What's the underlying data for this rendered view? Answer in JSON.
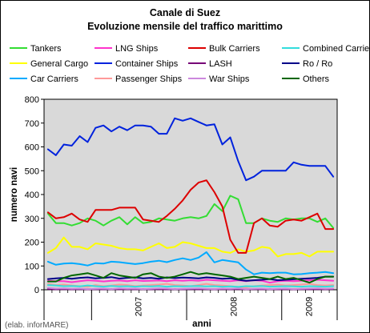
{
  "chart_data": {
    "type": "line",
    "title": "Canale di Suez",
    "subtitle": "Evoluzione mensile del traffico marittimo",
    "xlabel": "anni",
    "ylabel": "numero navi",
    "ylim": [
      0,
      800
    ],
    "yticks": [
      0,
      100,
      200,
      300,
      400,
      500,
      600,
      700,
      800
    ],
    "x_year_labels": [
      {
        "label": "2007",
        "index": 6
      },
      {
        "label": "2008",
        "index": 18
      },
      {
        "label": "2009",
        "index": 30
      }
    ],
    "x": [
      "2006-07",
      "2006-08",
      "2006-09",
      "2006-10",
      "2006-11",
      "2006-12",
      "2007-01",
      "2007-02",
      "2007-03",
      "2007-04",
      "2007-05",
      "2007-06",
      "2007-07",
      "2007-08",
      "2007-09",
      "2007-10",
      "2007-11",
      "2007-12",
      "2008-01",
      "2008-02",
      "2008-03",
      "2008-04",
      "2008-05",
      "2008-06",
      "2008-07",
      "2008-08",
      "2008-09",
      "2008-10",
      "2008-11",
      "2008-12",
      "2009-01",
      "2009-02",
      "2009-03",
      "2009-04",
      "2009-05",
      "2009-06",
      "2009-07"
    ],
    "grid": false,
    "legend_position": "top",
    "series": [
      {
        "name": "Tankers",
        "color": "#33dd33",
        "values": [
          320,
          280,
          280,
          270,
          280,
          300,
          290,
          270,
          290,
          305,
          275,
          305,
          280,
          285,
          300,
          295,
          290,
          300,
          305,
          300,
          310,
          360,
          330,
          395,
          380,
          280,
          280,
          300,
          290,
          285,
          300,
          295,
          300,
          300,
          285,
          300,
          260
        ]
      },
      {
        "name": "LNG Ships",
        "color": "#ff33cc",
        "values": [
          38,
          36,
          36,
          32,
          36,
          40,
          38,
          35,
          38,
          39,
          36,
          40,
          37,
          38,
          39,
          36,
          40,
          38,
          40,
          38,
          42,
          40,
          38,
          36,
          40,
          36,
          40,
          38,
          30,
          36,
          38,
          36,
          38,
          40,
          42,
          40,
          38
        ]
      },
      {
        "name": "Bulk Carriers",
        "color": "#dd0000",
        "values": [
          325,
          300,
          305,
          320,
          295,
          285,
          335,
          335,
          335,
          345,
          345,
          345,
          295,
          290,
          285,
          310,
          340,
          375,
          420,
          450,
          460,
          410,
          350,
          210,
          155,
          155,
          280,
          300,
          270,
          265,
          290,
          295,
          290,
          305,
          320,
          255,
          255
        ]
      },
      {
        "name": "Combined Carriers",
        "color": "#33dddd",
        "values": [
          20,
          18,
          15,
          16,
          14,
          18,
          15,
          13,
          16,
          14,
          15,
          13,
          15,
          14,
          16,
          13,
          15,
          14,
          15,
          16,
          14,
          15,
          13,
          14,
          12,
          15,
          14,
          16,
          13,
          14,
          15,
          14,
          13,
          15,
          14,
          13,
          15
        ]
      },
      {
        "name": "General Cargo",
        "color": "#ffff00",
        "values": [
          155,
          175,
          220,
          180,
          180,
          170,
          195,
          190,
          185,
          175,
          170,
          170,
          165,
          180,
          195,
          175,
          180,
          200,
          195,
          185,
          175,
          175,
          160,
          155,
          170,
          160,
          165,
          180,
          175,
          140,
          150,
          150,
          155,
          140,
          160,
          160,
          160
        ]
      },
      {
        "name": "Container Ships",
        "color": "#0022dd",
        "values": [
          590,
          565,
          610,
          605,
          645,
          620,
          680,
          690,
          665,
          685,
          670,
          690,
          690,
          685,
          655,
          655,
          720,
          710,
          720,
          705,
          690,
          695,
          610,
          640,
          540,
          460,
          475,
          500,
          500,
          500,
          500,
          535,
          525,
          520,
          520,
          520,
          475
        ]
      },
      {
        "name": "LASH",
        "color": "#770077",
        "values": [
          3,
          2,
          3,
          2,
          3,
          2,
          3,
          2,
          3,
          2,
          3,
          2,
          3,
          2,
          3,
          2,
          3,
          2,
          3,
          2,
          3,
          2,
          3,
          2,
          3,
          2,
          3,
          2,
          3,
          2,
          3,
          2,
          3,
          2,
          3,
          2,
          3
        ]
      },
      {
        "name": "Ro / Ro",
        "color": "#000088",
        "values": [
          45,
          48,
          50,
          46,
          50,
          52,
          48,
          50,
          53,
          47,
          50,
          52,
          48,
          50,
          46,
          52,
          49,
          51,
          50,
          48,
          52,
          50,
          46,
          48,
          42,
          38,
          40,
          42,
          45,
          40,
          42,
          44,
          46,
          48,
          50,
          55,
          55
        ]
      },
      {
        "name": "Car Carriers",
        "color": "#00aaff",
        "values": [
          118,
          105,
          110,
          112,
          108,
          102,
          112,
          110,
          118,
          116,
          112,
          108,
          112,
          118,
          122,
          116,
          125,
          132,
          125,
          135,
          158,
          115,
          125,
          120,
          115,
          85,
          65,
          72,
          70,
          72,
          72,
          65,
          66,
          70,
          72,
          75,
          70
        ]
      },
      {
        "name": "Passenger Ships",
        "color": "#ff9999",
        "values": [
          25,
          20,
          22,
          18,
          15,
          12,
          20,
          15,
          18,
          22,
          20,
          15,
          18,
          20,
          22,
          25,
          20,
          18,
          15,
          20,
          25,
          20,
          18,
          15,
          12,
          10,
          15,
          18,
          20,
          22,
          18,
          20,
          22,
          25,
          20,
          18,
          20
        ]
      },
      {
        "name": "War Ships",
        "color": "#cc88dd",
        "values": [
          8,
          5,
          6,
          4,
          5,
          3,
          4,
          5,
          3,
          6,
          4,
          5,
          3,
          4,
          6,
          5,
          3,
          4,
          5,
          6,
          4,
          3,
          5,
          4,
          6,
          3,
          4,
          5,
          3,
          4,
          5,
          3,
          4,
          5,
          6,
          4,
          5
        ]
      },
      {
        "name": "Others",
        "color": "#006600",
        "values": [
          35,
          35,
          50,
          60,
          65,
          70,
          60,
          50,
          70,
          60,
          55,
          50,
          65,
          70,
          55,
          50,
          55,
          65,
          75,
          65,
          70,
          65,
          60,
          55,
          45,
          50,
          55,
          50,
          45,
          55,
          45,
          50,
          40,
          30,
          45,
          55,
          55
        ]
      }
    ]
  },
  "footer": {
    "credit": "(elab. inforMARE)"
  },
  "colors": {
    "plot_background": "#d9d9d9",
    "page_background": "#ffffff"
  }
}
